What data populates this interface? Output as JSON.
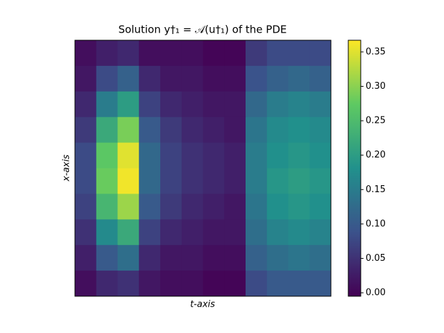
{
  "chart_data": {
    "type": "heatmap",
    "title": "Solution y†₁ = 𝒜(u†₁) of the PDE",
    "xlabel": "t-axis",
    "ylabel": "x-axis",
    "colormap": "viridis",
    "clim": [
      -0.005,
      0.367
    ],
    "cticks": [
      {
        "value": 0,
        "label": "0.00"
      },
      {
        "value": 0.05,
        "label": "0.05"
      },
      {
        "value": 0.1,
        "label": "0.10"
      },
      {
        "value": 0.15,
        "label": "0.15"
      },
      {
        "value": 0.2,
        "label": "0.20"
      },
      {
        "value": 0.25,
        "label": "0.25"
      },
      {
        "value": 0.3,
        "label": "0.30"
      },
      {
        "value": 0.35,
        "label": "0.35"
      }
    ],
    "z": [
      [
        0.01,
        0.03,
        0.04,
        0.01,
        0.01,
        0.01,
        0.0,
        0.0,
        0.06,
        0.08,
        0.08,
        0.08
      ],
      [
        0.02,
        0.08,
        0.11,
        0.04,
        0.02,
        0.02,
        0.01,
        0.01,
        0.09,
        0.11,
        0.12,
        0.11
      ],
      [
        0.04,
        0.15,
        0.2,
        0.07,
        0.04,
        0.03,
        0.02,
        0.02,
        0.12,
        0.15,
        0.16,
        0.15
      ],
      [
        0.06,
        0.22,
        0.29,
        0.1,
        0.06,
        0.04,
        0.03,
        0.02,
        0.14,
        0.17,
        0.18,
        0.17
      ],
      [
        0.08,
        0.27,
        0.35,
        0.12,
        0.07,
        0.05,
        0.04,
        0.03,
        0.15,
        0.18,
        0.19,
        0.18
      ],
      [
        0.08,
        0.28,
        0.36,
        0.12,
        0.07,
        0.05,
        0.04,
        0.03,
        0.15,
        0.19,
        0.2,
        0.19
      ],
      [
        0.07,
        0.24,
        0.31,
        0.1,
        0.06,
        0.04,
        0.03,
        0.02,
        0.14,
        0.18,
        0.19,
        0.18
      ],
      [
        0.05,
        0.17,
        0.22,
        0.07,
        0.04,
        0.03,
        0.02,
        0.02,
        0.13,
        0.16,
        0.17,
        0.16
      ],
      [
        0.03,
        0.1,
        0.13,
        0.04,
        0.02,
        0.02,
        0.01,
        0.01,
        0.11,
        0.13,
        0.14,
        0.13
      ],
      [
        0.01,
        0.04,
        0.05,
        0.02,
        0.01,
        0.01,
        0.0,
        0.0,
        0.08,
        0.1,
        0.1,
        0.1
      ]
    ]
  }
}
